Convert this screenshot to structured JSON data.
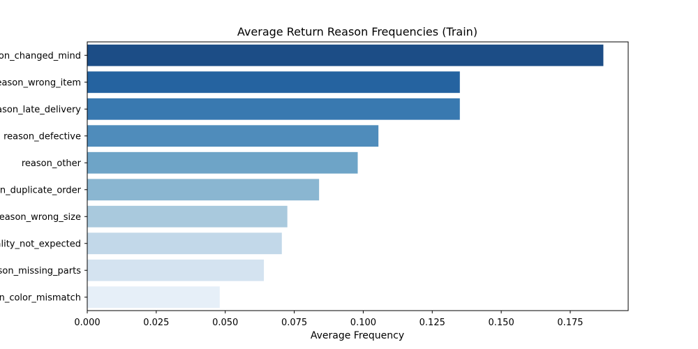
{
  "chart_data": {
    "type": "bar",
    "orientation": "horizontal",
    "title": "Average Return Reason Frequencies (Train)",
    "xlabel": "Average Frequency",
    "ylabel": "",
    "xlim": [
      0,
      0.196
    ],
    "xticks": [
      0.0,
      0.025,
      0.05,
      0.075,
      0.1,
      0.125,
      0.15,
      0.175
    ],
    "xtick_labels": [
      "0.000",
      "0.025",
      "0.050",
      "0.075",
      "0.100",
      "0.125",
      "0.150",
      "0.175"
    ],
    "grid": false,
    "categories": [
      "reason_changed_mind",
      "reason_wrong_item",
      "reason_late_delivery",
      "reason_defective",
      "reason_other",
      "reason_duplicate_order",
      "reason_wrong_size",
      "reason_quality_not_expected",
      "reason_missing_parts",
      "reason_color_mismatch"
    ],
    "values": [
      0.187,
      0.135,
      0.135,
      0.1055,
      0.098,
      0.084,
      0.0725,
      0.0705,
      0.064,
      0.048
    ],
    "colors": [
      "#1c4d86",
      "#2563a0",
      "#3979b0",
      "#4f8cbb",
      "#6ea4c7",
      "#8ab6d1",
      "#a9c9dd",
      "#c2d8e9",
      "#d4e3f0",
      "#e6eff8"
    ]
  }
}
